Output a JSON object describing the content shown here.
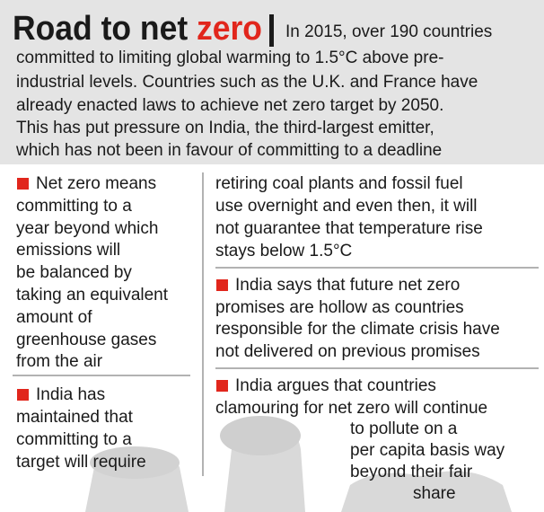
{
  "header": {
    "title_lead": "Road to net",
    "title_highlight": "zero",
    "intro": [
      "In 2015, over 190 countries",
      "committed to limiting global warming to  1.5°C above pre-",
      "industrial levels. Countries such as the U.K. and France have",
      "already enacted laws to achieve net zero target by 2050.",
      "This has put pressure on India, the third-largest emitter,",
      "which has not been in favour of committing to a deadline"
    ]
  },
  "left": [
    {
      "lines": [
        "Net zero means",
        "committing to a",
        "year beyond which",
        "emissions will",
        "be balanced by",
        "taking an equivalent",
        "amount of",
        "greenhouse gases",
        "from the air"
      ]
    },
    {
      "lines": [
        "India has",
        "maintained that",
        "committing to a",
        "target will require"
      ]
    }
  ],
  "right": [
    {
      "lines": [
        "retiring coal plants and fossil fuel",
        "use overnight and even then, it will",
        "not guarantee that temperature rise",
        "stays below 1.5°C"
      ]
    },
    {
      "lines": [
        "India says that future net zero",
        "promises are hollow as countries",
        "responsible for the climate crisis have",
        "not delivered on previous promises"
      ]
    },
    {
      "lines": [
        "India argues that countries",
        "clamouring for net zero will continue",
        "to pollute on a",
        "per capita basis way",
        "beyond their fair",
        "share"
      ]
    }
  ]
}
